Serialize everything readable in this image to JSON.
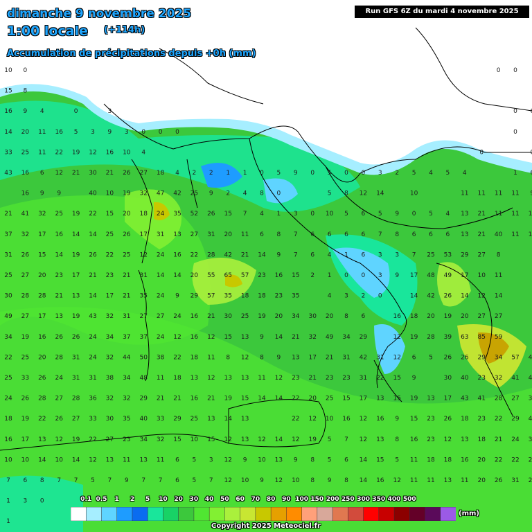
{
  "header": {
    "line1": "dimanche 9 novembre 2025",
    "line2": "1:00 locale",
    "lead": "(+114h)",
    "line3": "Accumulation de précipitations depuis +0h (mm)",
    "run_label": "Run GFS 6Z du mardi 4 novembre 2025"
  },
  "legend": {
    "thresholds": [
      "0.1",
      "0.5",
      "1",
      "2",
      "5",
      "10",
      "20",
      "30",
      "40",
      "50",
      "60",
      "70",
      "80",
      "90",
      "100",
      "150",
      "200",
      "250",
      "300",
      "350",
      "400",
      "500"
    ],
    "colors": [
      "#ffffff",
      "#a6eeff",
      "#5fd4ff",
      "#1e9cff",
      "#0a6cf0",
      "#19e69b",
      "#18d266",
      "#3cc83c",
      "#50e632",
      "#82f032",
      "#aaf03c",
      "#c8e632",
      "#c8c800",
      "#e6a000",
      "#ff8c00",
      "#ffa07a",
      "#d8a89a",
      "#e07850",
      "#d24b3c",
      "#ff0000",
      "#c80000",
      "#8c0000",
      "#640028",
      "#5a0a5a",
      "#9b5ae6"
    ],
    "unit": "(mm)"
  },
  "copyright": "Copyright 2025 Meteociel.fr",
  "map": {
    "grid_rows": [
      [
        "10",
        "0",
        "",
        "",
        "",
        "",
        "",
        "",
        "",
        "",
        "",
        "",
        "",
        "",
        "",
        "",
        "",
        "",
        "",
        "",
        "",
        "",
        "",
        "",
        "",
        "",
        "",
        "",
        "",
        "0",
        "0",
        ""
      ],
      [
        "15",
        "8",
        "",
        "",
        "",
        "",
        "",
        "",
        "",
        "",
        "",
        "",
        "",
        "",
        "",
        "",
        "",
        "",
        "",
        "",
        "",
        "",
        "",
        "",
        "",
        "",
        "",
        "",
        "",
        "",
        "",
        ""
      ],
      [
        "16",
        "9",
        "4",
        "",
        "0",
        "",
        "3",
        "",
        "",
        "",
        "",
        "",
        "",
        "",
        "",
        "",
        "",
        "",
        "",
        "",
        "",
        "",
        "",
        "",
        "",
        "",
        "",
        "",
        "",
        "",
        "0",
        "6"
      ],
      [
        "14",
        "20",
        "11",
        "16",
        "5",
        "3",
        "9",
        "3",
        "0",
        "0",
        "0",
        "",
        "",
        "",
        "",
        "",
        "",
        "",
        "",
        "",
        "",
        "",
        "",
        "",
        "",
        "",
        "",
        "",
        "",
        "",
        "0",
        ""
      ],
      [
        "33",
        "25",
        "11",
        "22",
        "19",
        "12",
        "16",
        "10",
        "4",
        "",
        "",
        "",
        "",
        "",
        "",
        "",
        "",
        "",
        "",
        "",
        "",
        "",
        "",
        "",
        "",
        "",
        "",
        "",
        "0",
        "",
        "",
        "0"
      ],
      [
        "43",
        "16",
        "6",
        "12",
        "21",
        "30",
        "21",
        "26",
        "27",
        "18",
        "4",
        "2",
        "2",
        "1",
        "1",
        "0",
        "5",
        "9",
        "0",
        "5",
        "0",
        "0",
        "3",
        "2",
        "5",
        "4",
        "5",
        "4",
        "",
        "",
        "1",
        "6"
      ],
      [
        "",
        "16",
        "9",
        "9",
        "",
        "40",
        "10",
        "19",
        "32",
        "47",
        "42",
        "25",
        "9",
        "2",
        "4",
        "8",
        "0",
        "",
        "",
        "5",
        "8",
        "12",
        "14",
        "",
        "10",
        "",
        "",
        "11",
        "11",
        "11",
        "11",
        "9"
      ],
      [
        "21",
        "41",
        "32",
        "25",
        "19",
        "22",
        "15",
        "20",
        "18",
        "24",
        "35",
        "52",
        "26",
        "15",
        "7",
        "4",
        "1",
        "3",
        "0",
        "10",
        "5",
        "6",
        "5",
        "9",
        "0",
        "5",
        "4",
        "13",
        "21",
        "11",
        "11",
        "11"
      ],
      [
        "37",
        "32",
        "17",
        "16",
        "14",
        "14",
        "25",
        "26",
        "17",
        "31",
        "13",
        "27",
        "31",
        "20",
        "11",
        "6",
        "8",
        "7",
        "6",
        "6",
        "6",
        "6",
        "7",
        "8",
        "6",
        "6",
        "6",
        "13",
        "21",
        "40",
        "11",
        "11"
      ],
      [
        "31",
        "26",
        "15",
        "14",
        "19",
        "26",
        "22",
        "25",
        "12",
        "24",
        "16",
        "22",
        "28",
        "42",
        "21",
        "14",
        "9",
        "7",
        "6",
        "4",
        "1",
        "6",
        "3",
        "3",
        "7",
        "25",
        "53",
        "29",
        "27",
        "8",
        "",
        ""
      ],
      [
        "25",
        "27",
        "20",
        "23",
        "17",
        "21",
        "23",
        "21",
        "31",
        "14",
        "14",
        "20",
        "55",
        "65",
        "57",
        "23",
        "16",
        "15",
        "2",
        "1",
        "0",
        "0",
        "3",
        "9",
        "17",
        "48",
        "49",
        "17",
        "10",
        "11",
        "",
        ""
      ],
      [
        "30",
        "28",
        "28",
        "21",
        "13",
        "14",
        "17",
        "21",
        "35",
        "24",
        "9",
        "29",
        "57",
        "35",
        "18",
        "18",
        "23",
        "35",
        "",
        "4",
        "3",
        "2",
        "0",
        "",
        "14",
        "42",
        "26",
        "14",
        "12",
        "14",
        "",
        ""
      ],
      [
        "49",
        "27",
        "17",
        "13",
        "19",
        "43",
        "32",
        "31",
        "27",
        "27",
        "24",
        "16",
        "21",
        "30",
        "25",
        "19",
        "20",
        "34",
        "30",
        "20",
        "8",
        "6",
        "",
        "16",
        "18",
        "20",
        "19",
        "20",
        "27",
        "27",
        "",
        ""
      ],
      [
        "34",
        "19",
        "16",
        "26",
        "26",
        "24",
        "34",
        "37",
        "37",
        "24",
        "12",
        "16",
        "12",
        "15",
        "13",
        "9",
        "14",
        "21",
        "32",
        "49",
        "34",
        "29",
        "",
        "12",
        "19",
        "28",
        "39",
        "63",
        "85",
        "59",
        "",
        ""
      ],
      [
        "22",
        "25",
        "20",
        "28",
        "31",
        "24",
        "32",
        "44",
        "50",
        "38",
        "22",
        "18",
        "11",
        "8",
        "12",
        "8",
        "9",
        "13",
        "17",
        "21",
        "31",
        "42",
        "31",
        "12",
        "6",
        "5",
        "26",
        "26",
        "29",
        "34",
        "57",
        "42"
      ],
      [
        "25",
        "33",
        "26",
        "24",
        "31",
        "31",
        "38",
        "34",
        "48",
        "11",
        "18",
        "13",
        "12",
        "13",
        "13",
        "11",
        "12",
        "23",
        "21",
        "23",
        "23",
        "31",
        "22",
        "15",
        "9",
        "",
        "30",
        "40",
        "23",
        "32",
        "41",
        "41"
      ],
      [
        "24",
        "26",
        "28",
        "27",
        "28",
        "36",
        "32",
        "32",
        "29",
        "21",
        "21",
        "16",
        "21",
        "19",
        "15",
        "14",
        "14",
        "22",
        "20",
        "25",
        "15",
        "17",
        "13",
        "15",
        "19",
        "13",
        "17",
        "43",
        "41",
        "28",
        "27",
        "31"
      ],
      [
        "18",
        "19",
        "22",
        "26",
        "27",
        "33",
        "30",
        "35",
        "40",
        "33",
        "29",
        "25",
        "13",
        "14",
        "13",
        "",
        "",
        "22",
        "12",
        "10",
        "16",
        "12",
        "16",
        "9",
        "15",
        "23",
        "26",
        "18",
        "23",
        "22",
        "29",
        "42"
      ],
      [
        "16",
        "17",
        "13",
        "12",
        "19",
        "22",
        "27",
        "23",
        "34",
        "32",
        "15",
        "10",
        "15",
        "12",
        "13",
        "12",
        "14",
        "12",
        "19",
        "5",
        "7",
        "12",
        "13",
        "8",
        "16",
        "23",
        "12",
        "13",
        "18",
        "21",
        "24",
        "30"
      ],
      [
        "10",
        "10",
        "14",
        "10",
        "14",
        "12",
        "13",
        "11",
        "13",
        "11",
        "6",
        "5",
        "3",
        "12",
        "9",
        "10",
        "13",
        "9",
        "8",
        "5",
        "6",
        "14",
        "15",
        "5",
        "11",
        "18",
        "18",
        "16",
        "20",
        "22",
        "22",
        "25"
      ],
      [
        "7",
        "6",
        "8",
        "7",
        "7",
        "5",
        "7",
        "9",
        "7",
        "7",
        "6",
        "5",
        "7",
        "12",
        "10",
        "9",
        "12",
        "10",
        "8",
        "9",
        "8",
        "14",
        "16",
        "12",
        "11",
        "11",
        "13",
        "11",
        "20",
        "26",
        "31",
        "29"
      ],
      [
        "1",
        "3",
        "0",
        "",
        "",
        "",
        "",
        "",
        "",
        "",
        "",
        "",
        "",
        "",
        "",
        "",
        "",
        "",
        "",
        "",
        "",
        "",
        "",
        "",
        "",
        "",
        "",
        "",
        "",
        "",
        "",
        ""
      ],
      [
        "1",
        "",
        "",
        "",
        "",
        "",
        "",
        "",
        "",
        "",
        "",
        "",
        "",
        "",
        "",
        "",
        "",
        "",
        "",
        "",
        "",
        "",
        "",
        "",
        "",
        "",
        "",
        "",
        "",
        "",
        "",
        ""
      ]
    ]
  }
}
